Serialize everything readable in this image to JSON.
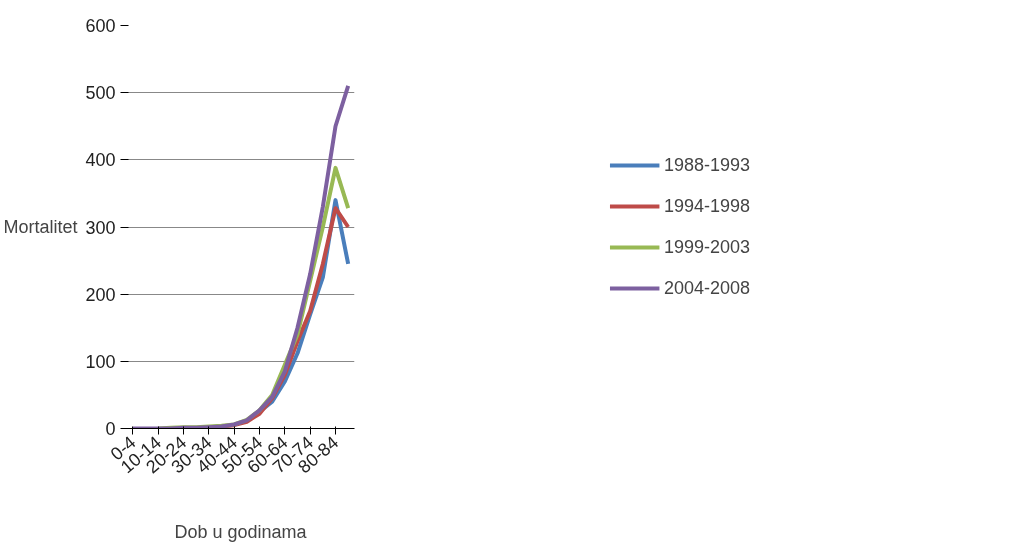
{
  "chart_data": {
    "type": "line",
    "xlabel": "Dob u godinama",
    "ylabel": "Mortalitet",
    "categories": [
      "0-4",
      null,
      "10-14",
      null,
      "20-24",
      null,
      "30-34",
      null,
      "40-44",
      null,
      "50-54",
      null,
      "60-64",
      null,
      "70-74",
      null,
      "80-84",
      null
    ],
    "series": [
      {
        "name": "1988-1993",
        "color": "#4a7ebb",
        "values": [
          null,
          null,
          null,
          null,
          null,
          null,
          null,
          null,
          null,
          null,
          25,
          40,
          70,
          112,
          170,
          225,
          340,
          245
        ]
      },
      {
        "name": "1994-1998",
        "color": "#be4b48",
        "values": [
          null,
          null,
          null,
          null,
          null,
          null,
          null,
          3,
          5,
          10,
          22,
          45,
          80,
          130,
          175,
          245,
          328,
          300
        ]
      },
      {
        "name": "1999-2003",
        "color": "#98b954",
        "values": [
          null,
          null,
          0,
          1,
          2,
          2,
          3,
          4,
          6,
          13,
          27,
          50,
          95,
          140,
          220,
          300,
          388,
          328
        ]
      },
      {
        "name": "2004-2008",
        "color": "#7d60a0",
        "values": [
          0,
          0,
          0,
          0,
          1,
          1,
          2,
          3,
          6,
          12,
          27,
          47,
          85,
          150,
          230,
          330,
          450,
          510
        ]
      }
    ],
    "ylim": [
      0,
      600
    ],
    "yticks": [
      0,
      100,
      200,
      300,
      400,
      500,
      600
    ],
    "grid": "y",
    "legend": "right"
  }
}
